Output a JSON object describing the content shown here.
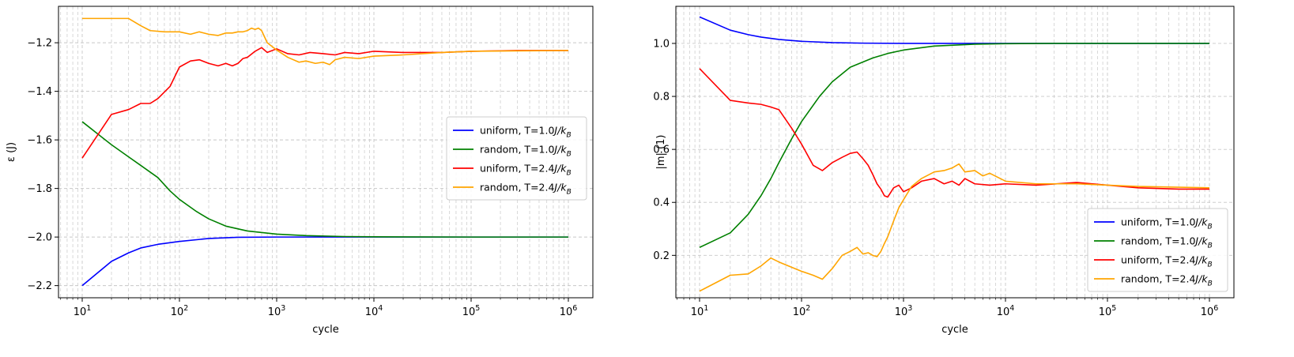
{
  "chart_data": [
    {
      "type": "line",
      "xscale": "log",
      "xlim": [
        10,
        1000000
      ],
      "ylim": [
        -2.25,
        -1.05
      ],
      "xlabel": "cycle",
      "ylabel": "ε (J)",
      "xtick_labels": [
        {
          "base": "10",
          "exp": "1"
        },
        {
          "base": "10",
          "exp": "2"
        },
        {
          "base": "10",
          "exp": "3"
        },
        {
          "base": "10",
          "exp": "4"
        },
        {
          "base": "10",
          "exp": "5"
        },
        {
          "base": "10",
          "exp": "6"
        }
      ],
      "yticks": [
        -2.2,
        -2.0,
        -1.8,
        -1.6,
        -1.4,
        -1.2
      ],
      "ytick_labels": [
        "−2.2",
        "−2.0",
        "−1.8",
        "−1.6",
        "−1.4",
        "−1.2"
      ],
      "grid": true,
      "legend_position": "center-right",
      "series": [
        {
          "name": "uniform, T=1.0J/k_B",
          "label": "uniform, T=1.0",
          "unit": "J/k",
          "sub": "B",
          "color": "#0000ff",
          "x": [
            10,
            20,
            30,
            40,
            60,
            100,
            200,
            400,
            1000,
            10000,
            1000000
          ],
          "y": [
            -2.2,
            -2.1,
            -2.065,
            -2.045,
            -2.03,
            -2.018,
            -2.006,
            -2.001,
            -2.0,
            -2.0,
            -2.0
          ]
        },
        {
          "name": "random, T=1.0J/k_B",
          "label": "random, T=1.0",
          "unit": "J/k",
          "sub": "B",
          "color": "#008000",
          "x": [
            10,
            20,
            30,
            40,
            60,
            80,
            100,
            150,
            200,
            300,
            500,
            1000,
            2000,
            5000,
            10000,
            100000,
            1000000
          ],
          "y": [
            -1.525,
            -1.62,
            -1.67,
            -1.705,
            -1.755,
            -1.81,
            -1.845,
            -1.895,
            -1.925,
            -1.955,
            -1.975,
            -1.988,
            -1.994,
            -1.998,
            -1.999,
            -2.0,
            -2.0
          ]
        },
        {
          "name": "uniform, T=2.4J/k_B",
          "label": "uniform, T=2.4",
          "unit": "J/k",
          "sub": "B",
          "color": "#ff0000",
          "x": [
            10,
            20,
            30,
            40,
            50,
            60,
            80,
            100,
            130,
            160,
            200,
            250,
            300,
            350,
            400,
            450,
            500,
            600,
            700,
            800,
            1000,
            1300,
            1700,
            2200,
            3000,
            4000,
            5000,
            7000,
            10000,
            20000,
            50000,
            100000,
            300000,
            1000000
          ],
          "y": [
            -1.675,
            -1.495,
            -1.475,
            -1.45,
            -1.45,
            -1.43,
            -1.38,
            -1.3,
            -1.275,
            -1.27,
            -1.285,
            -1.295,
            -1.285,
            -1.295,
            -1.285,
            -1.265,
            -1.26,
            -1.235,
            -1.22,
            -1.24,
            -1.225,
            -1.245,
            -1.25,
            -1.24,
            -1.245,
            -1.25,
            -1.24,
            -1.245,
            -1.235,
            -1.24,
            -1.24,
            -1.235,
            -1.232,
            -1.232
          ]
        },
        {
          "name": "random, T=2.4J/k_B",
          "label": "random, T=2.4",
          "unit": "J/k",
          "sub": "B",
          "color": "#ffa500",
          "x": [
            10,
            30,
            40,
            50,
            70,
            100,
            130,
            160,
            200,
            250,
            300,
            350,
            400,
            450,
            500,
            550,
            600,
            650,
            700,
            800,
            1000,
            1300,
            1700,
            2000,
            2500,
            3000,
            3500,
            4000,
            5000,
            7000,
            10000,
            20000,
            50000,
            100000,
            1000000
          ],
          "y": [
            -1.1,
            -1.1,
            -1.13,
            -1.15,
            -1.155,
            -1.155,
            -1.165,
            -1.155,
            -1.165,
            -1.17,
            -1.16,
            -1.16,
            -1.155,
            -1.155,
            -1.15,
            -1.14,
            -1.145,
            -1.14,
            -1.15,
            -1.2,
            -1.23,
            -1.26,
            -1.28,
            -1.275,
            -1.285,
            -1.28,
            -1.29,
            -1.27,
            -1.26,
            -1.265,
            -1.255,
            -1.25,
            -1.24,
            -1.235,
            -1.232
          ]
        }
      ]
    },
    {
      "type": "line",
      "xscale": "log",
      "xlim": [
        10,
        1000000
      ],
      "ylim": [
        0.04,
        1.14
      ],
      "xlabel": "cycle",
      "ylabel": "|m| (1)",
      "xtick_labels": [
        {
          "base": "10",
          "exp": "1"
        },
        {
          "base": "10",
          "exp": "2"
        },
        {
          "base": "10",
          "exp": "3"
        },
        {
          "base": "10",
          "exp": "4"
        },
        {
          "base": "10",
          "exp": "5"
        },
        {
          "base": "10",
          "exp": "6"
        }
      ],
      "yticks": [
        0.2,
        0.4,
        0.6,
        0.8,
        1.0
      ],
      "ytick_labels": [
        "0.2",
        "0.4",
        "0.6",
        "0.8",
        "1.0"
      ],
      "grid": true,
      "legend_position": "lower-right",
      "series": [
        {
          "name": "uniform, T=1.0J/k_B",
          "label": "uniform, T=1.0",
          "unit": "J/k",
          "sub": "B",
          "color": "#0000ff",
          "x": [
            10,
            20,
            30,
            40,
            60,
            100,
            200,
            400,
            1000,
            10000,
            1000000
          ],
          "y": [
            1.1,
            1.05,
            1.033,
            1.024,
            1.015,
            1.008,
            1.003,
            1.001,
            1.0,
            1.0,
            1.0
          ]
        },
        {
          "name": "random, T=1.0J/k_B",
          "label": "random, T=1.0",
          "unit": "J/k",
          "sub": "B",
          "color": "#008000",
          "x": [
            10,
            20,
            30,
            40,
            50,
            60,
            80,
            100,
            150,
            200,
            300,
            500,
            700,
            1000,
            2000,
            5000,
            10000,
            30000,
            100000,
            1000000
          ],
          "y": [
            0.23,
            0.285,
            0.355,
            0.425,
            0.49,
            0.55,
            0.64,
            0.705,
            0.8,
            0.855,
            0.91,
            0.945,
            0.962,
            0.975,
            0.99,
            0.997,
            0.999,
            1.0,
            1.0,
            1.0
          ]
        },
        {
          "name": "uniform, T=2.4J/k_B",
          "label": "uniform, T=2.4",
          "unit": "J/k",
          "sub": "B",
          "color": "#ff0000",
          "x": [
            10,
            20,
            30,
            40,
            50,
            60,
            80,
            100,
            130,
            160,
            200,
            250,
            300,
            350,
            400,
            450,
            500,
            550,
            600,
            650,
            700,
            800,
            900,
            1000,
            1200,
            1500,
            2000,
            2500,
            3000,
            3500,
            4000,
            5000,
            7000,
            10000,
            20000,
            50000,
            100000,
            200000,
            500000,
            1000000
          ],
          "y": [
            0.905,
            0.785,
            0.775,
            0.77,
            0.76,
            0.75,
            0.68,
            0.62,
            0.54,
            0.52,
            0.55,
            0.57,
            0.585,
            0.59,
            0.565,
            0.54,
            0.505,
            0.47,
            0.45,
            0.425,
            0.42,
            0.455,
            0.465,
            0.44,
            0.455,
            0.48,
            0.49,
            0.47,
            0.48,
            0.465,
            0.49,
            0.47,
            0.465,
            0.47,
            0.465,
            0.475,
            0.465,
            0.455,
            0.45,
            0.45
          ]
        },
        {
          "name": "random, T=2.4J/k_B",
          "label": "random, T=2.4",
          "unit": "J/k",
          "sub": "B",
          "color": "#ffa500",
          "x": [
            10,
            20,
            30,
            40,
            50,
            60,
            80,
            100,
            130,
            160,
            200,
            250,
            300,
            350,
            400,
            450,
            500,
            550,
            600,
            650,
            700,
            800,
            900,
            1000,
            1200,
            1500,
            2000,
            2500,
            3000,
            3500,
            4000,
            5000,
            6000,
            7000,
            10000,
            20000,
            50000,
            100000,
            200000,
            1000000
          ],
          "y": [
            0.065,
            0.125,
            0.13,
            0.16,
            0.19,
            0.175,
            0.155,
            0.14,
            0.125,
            0.11,
            0.15,
            0.2,
            0.215,
            0.23,
            0.205,
            0.21,
            0.2,
            0.195,
            0.215,
            0.245,
            0.27,
            0.33,
            0.38,
            0.41,
            0.46,
            0.49,
            0.515,
            0.52,
            0.53,
            0.545,
            0.515,
            0.52,
            0.5,
            0.51,
            0.48,
            0.47,
            0.47,
            0.465,
            0.46,
            0.455
          ]
        }
      ]
    }
  ]
}
